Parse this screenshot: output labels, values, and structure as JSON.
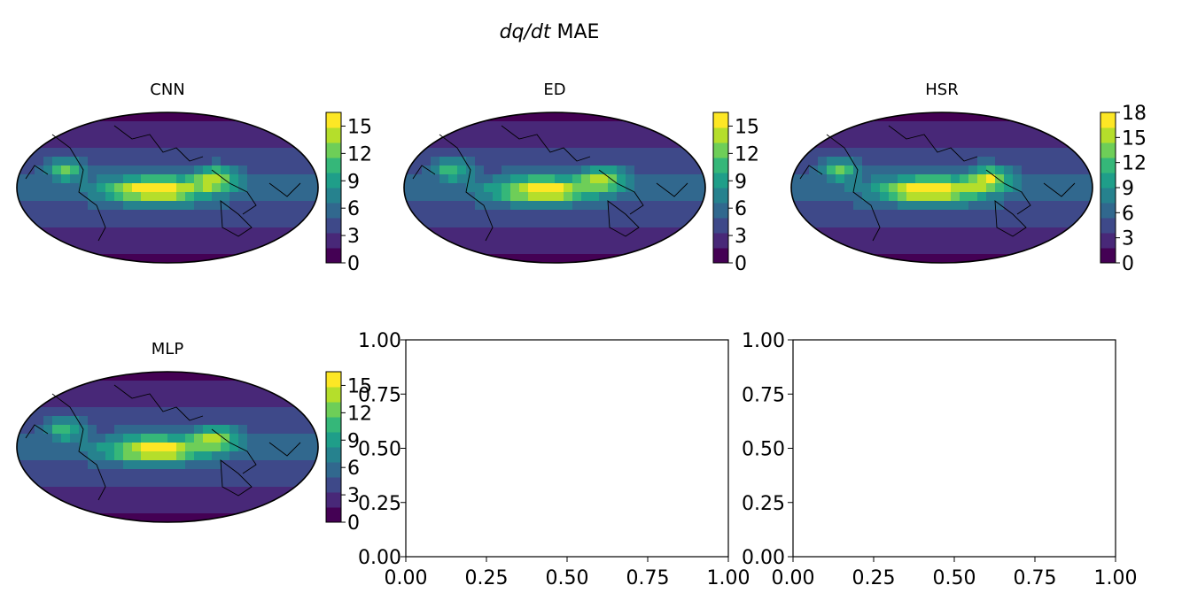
{
  "figure": {
    "suptitle_italic": "dq/dt",
    "suptitle_rest": " MAE"
  },
  "chart_data": [
    {
      "type": "heatmap",
      "title": "CNN",
      "colormap": "viridis",
      "projection": "robinson",
      "colorbar_ticks": [
        "0",
        "3",
        "6",
        "9",
        "12",
        "15"
      ],
      "range": [
        0,
        16.5
      ],
      "field_peak": 15.8,
      "colors": [
        "#440154",
        "#482878",
        "#3e4989",
        "#31688e",
        "#26828e",
        "#1f9e89",
        "#35b779",
        "#6ece58",
        "#b5de2b",
        "#fde725"
      ]
    },
    {
      "type": "heatmap",
      "title": "ED",
      "colormap": "viridis",
      "projection": "robinson",
      "colorbar_ticks": [
        "0",
        "3",
        "6",
        "9",
        "12",
        "15"
      ],
      "range": [
        0,
        16.5
      ],
      "field_peak": 15.5,
      "colors": [
        "#440154",
        "#482878",
        "#3e4989",
        "#31688e",
        "#26828e",
        "#1f9e89",
        "#35b779",
        "#6ece58",
        "#b5de2b",
        "#fde725"
      ]
    },
    {
      "type": "heatmap",
      "title": "HSR",
      "colormap": "viridis",
      "projection": "robinson",
      "colorbar_ticks": [
        "0",
        "3",
        "6",
        "9",
        "12",
        "15",
        "18"
      ],
      "range": [
        0,
        18
      ],
      "field_peak": 17.5,
      "colors": [
        "#440154",
        "#482878",
        "#3e4989",
        "#31688e",
        "#26828e",
        "#1f9e89",
        "#35b779",
        "#6ece58",
        "#b5de2b",
        "#fde725"
      ]
    },
    {
      "type": "heatmap",
      "title": "MLP",
      "colormap": "viridis",
      "projection": "robinson",
      "colorbar_ticks": [
        "0",
        "3",
        "6",
        "9",
        "12",
        "15"
      ],
      "range": [
        0,
        16.5
      ],
      "field_peak": 15.5,
      "colors": [
        "#440154",
        "#482878",
        "#3e4989",
        "#31688e",
        "#26828e",
        "#1f9e89",
        "#35b779",
        "#6ece58",
        "#b5de2b",
        "#fde725"
      ],
      "overlay_yticks": [
        "0.00",
        "0.25",
        "0.50",
        "0.75",
        "1.00"
      ]
    },
    {
      "type": "scatter",
      "title": "",
      "empty": true,
      "xlim": [
        0,
        1
      ],
      "ylim": [
        0,
        1
      ],
      "xticks": [
        "0.00",
        "0.25",
        "0.50",
        "0.75",
        "1.00"
      ],
      "yticks": [
        "0.00",
        "0.25",
        "0.50",
        "0.75",
        "1.00"
      ]
    },
    {
      "type": "scatter",
      "title": "",
      "empty": true,
      "xlim": [
        0,
        1
      ],
      "ylim": [
        0,
        1
      ],
      "xticks": [
        "0.00",
        "0.25",
        "0.50",
        "0.75",
        "1.00"
      ],
      "yticks": [
        "0.00",
        "0.25",
        "0.50",
        "0.75",
        "1.00"
      ]
    }
  ]
}
